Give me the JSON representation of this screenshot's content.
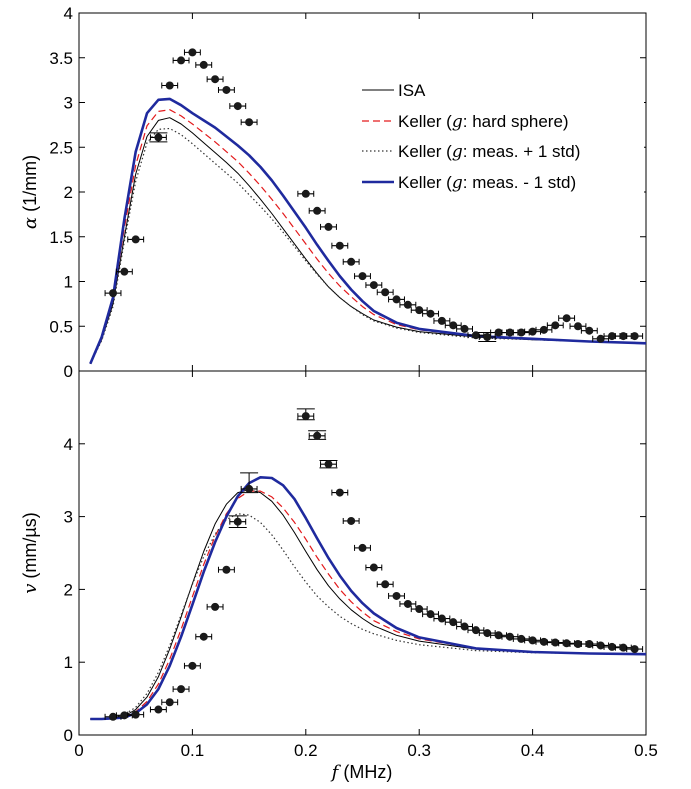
{
  "chart_data": [
    {
      "type": "line",
      "ylabel": {
        "symbol": "α",
        "unit": " (1/mm)"
      },
      "xlabel": "",
      "xlim": [
        0,
        0.5
      ],
      "ylim": [
        0,
        4
      ],
      "xticks": [],
      "yticks": [
        "0",
        "0.5",
        "1",
        "1.5",
        "2",
        "2.5",
        "3",
        "3.5",
        "4"
      ],
      "grid": false,
      "legend": {
        "placement": "top-right",
        "entries": [
          {
            "pre": "ISA",
            "sym": "",
            "post": "",
            "color": "#000000",
            "dash": "",
            "width": 1
          },
          {
            "pre": "Keller (",
            "sym": "g",
            "post": ": hard sphere)",
            "color": "#e31a1c",
            "dash": "7,4",
            "width": 1.2
          },
          {
            "pre": "Keller (",
            "sym": "g",
            "post": ": meas. + 1 std)",
            "color": "#333333",
            "dash": "1.5,2.5",
            "width": 1.2
          },
          {
            "pre": "Keller (",
            "sym": "g",
            "post": ": meas. - 1 std)",
            "color": "#1f2a9e",
            "dash": "",
            "width": 2.6
          }
        ]
      },
      "series": [
        {
          "legend_index": 0,
          "x": [
            0.01,
            0.02,
            0.03,
            0.04,
            0.05,
            0.06,
            0.07,
            0.08,
            0.09,
            0.1,
            0.11,
            0.12,
            0.13,
            0.14,
            0.15,
            0.16,
            0.17,
            0.18,
            0.19,
            0.2,
            0.21,
            0.22,
            0.23,
            0.24,
            0.25,
            0.26,
            0.28,
            0.3,
            0.35,
            0.4,
            0.45,
            0.5
          ],
          "y": [
            0.08,
            0.35,
            0.75,
            1.5,
            2.2,
            2.62,
            2.8,
            2.83,
            2.76,
            2.66,
            2.55,
            2.44,
            2.33,
            2.21,
            2.07,
            1.92,
            1.76,
            1.59,
            1.42,
            1.25,
            1.09,
            0.94,
            0.82,
            0.72,
            0.64,
            0.57,
            0.49,
            0.44,
            0.38,
            0.35,
            0.33,
            0.31
          ]
        },
        {
          "legend_index": 1,
          "x": [
            0.01,
            0.02,
            0.03,
            0.04,
            0.05,
            0.06,
            0.07,
            0.08,
            0.09,
            0.1,
            0.11,
            0.12,
            0.13,
            0.14,
            0.15,
            0.16,
            0.17,
            0.18,
            0.19,
            0.2,
            0.21,
            0.22,
            0.23,
            0.24,
            0.25,
            0.26,
            0.28,
            0.3,
            0.35,
            0.4,
            0.45,
            0.5
          ],
          "y": [
            0.08,
            0.36,
            0.8,
            1.6,
            2.3,
            2.74,
            2.9,
            2.92,
            2.85,
            2.76,
            2.66,
            2.56,
            2.45,
            2.34,
            2.21,
            2.07,
            1.92,
            1.76,
            1.59,
            1.42,
            1.25,
            1.09,
            0.95,
            0.83,
            0.72,
            0.63,
            0.52,
            0.46,
            0.39,
            0.36,
            0.33,
            0.31
          ]
        },
        {
          "legend_index": 2,
          "x": [
            0.01,
            0.02,
            0.03,
            0.04,
            0.05,
            0.06,
            0.07,
            0.08,
            0.09,
            0.1,
            0.11,
            0.12,
            0.13,
            0.14,
            0.15,
            0.16,
            0.17,
            0.18,
            0.19,
            0.2,
            0.21,
            0.22,
            0.23,
            0.24,
            0.25,
            0.26,
            0.28,
            0.3,
            0.35,
            0.4,
            0.45,
            0.5
          ],
          "y": [
            0.08,
            0.34,
            0.72,
            1.45,
            2.12,
            2.55,
            2.7,
            2.71,
            2.64,
            2.54,
            2.43,
            2.32,
            2.21,
            2.1,
            1.97,
            1.84,
            1.7,
            1.55,
            1.39,
            1.23,
            1.08,
            0.94,
            0.82,
            0.72,
            0.63,
            0.56,
            0.48,
            0.43,
            0.37,
            0.35,
            0.33,
            0.31
          ]
        },
        {
          "legend_index": 3,
          "x": [
            0.01,
            0.02,
            0.03,
            0.04,
            0.05,
            0.06,
            0.07,
            0.08,
            0.09,
            0.1,
            0.11,
            0.12,
            0.13,
            0.14,
            0.15,
            0.16,
            0.17,
            0.18,
            0.19,
            0.2,
            0.21,
            0.22,
            0.23,
            0.24,
            0.25,
            0.26,
            0.28,
            0.3,
            0.35,
            0.4,
            0.45,
            0.5
          ],
          "y": [
            0.08,
            0.38,
            0.82,
            1.7,
            2.45,
            2.88,
            3.03,
            3.04,
            2.97,
            2.88,
            2.8,
            2.72,
            2.62,
            2.52,
            2.41,
            2.28,
            2.13,
            1.96,
            1.78,
            1.6,
            1.41,
            1.23,
            1.06,
            0.91,
            0.78,
            0.67,
            0.54,
            0.47,
            0.39,
            0.36,
            0.33,
            0.31
          ]
        }
      ],
      "measured": {
        "x": [
          0.03,
          0.04,
          0.05,
          0.07,
          0.08,
          0.09,
          0.1,
          0.11,
          0.12,
          0.13,
          0.14,
          0.15,
          0.2,
          0.21,
          0.22,
          0.23,
          0.24,
          0.25,
          0.26,
          0.27,
          0.28,
          0.29,
          0.3,
          0.31,
          0.32,
          0.33,
          0.34,
          0.35,
          0.36,
          0.37,
          0.38,
          0.39,
          0.4,
          0.41,
          0.42,
          0.43,
          0.44,
          0.45,
          0.46,
          0.47,
          0.48,
          0.49
        ],
        "y": [
          0.87,
          1.11,
          1.47,
          2.61,
          3.19,
          3.47,
          3.56,
          3.42,
          3.26,
          3.14,
          2.96,
          2.78,
          1.98,
          1.79,
          1.61,
          1.4,
          1.22,
          1.06,
          0.96,
          0.88,
          0.8,
          0.74,
          0.68,
          0.64,
          0.56,
          0.51,
          0.47,
          0.4,
          0.38,
          0.43,
          0.43,
          0.43,
          0.44,
          0.46,
          0.51,
          0.59,
          0.5,
          0.45,
          0.36,
          0.39,
          0.39,
          0.39
        ],
        "xerr": 0.007,
        "yerr_hi": [
          0,
          0,
          0,
          0.05,
          0,
          0,
          0,
          0,
          0,
          0,
          0,
          0,
          0,
          0,
          0,
          0,
          0,
          0,
          0,
          0,
          0,
          0,
          0,
          0,
          0,
          0,
          0,
          0,
          0.05,
          0,
          0,
          0,
          0,
          0,
          0,
          0,
          0,
          0,
          0,
          0,
          0,
          0
        ],
        "yerr_lo": [
          0,
          0,
          0,
          0.05,
          0,
          0,
          0,
          0,
          0,
          0,
          0,
          0,
          0,
          0,
          0,
          0,
          0,
          0,
          0,
          0,
          0,
          0,
          0,
          0,
          0,
          0,
          0,
          0,
          0.05,
          0,
          0,
          0,
          0,
          0,
          0,
          0,
          0,
          0,
          0,
          0,
          0,
          0
        ]
      }
    },
    {
      "type": "line",
      "ylabel": {
        "symbol": "v",
        "unit": " (mm/µs)"
      },
      "xlabel": {
        "symbol": "f",
        "unit": " (MHz)"
      },
      "xlim": [
        0,
        0.5
      ],
      "ylim": [
        0,
        5
      ],
      "xticks": [
        "0",
        "0.1",
        "0.2",
        "0.3",
        "0.4",
        "0.5"
      ],
      "yticks": [
        "0",
        "1",
        "2",
        "3",
        "4"
      ],
      "grid": false,
      "series": [
        {
          "legend_index": 0,
          "x": [
            0.01,
            0.02,
            0.03,
            0.04,
            0.05,
            0.06,
            0.07,
            0.08,
            0.09,
            0.1,
            0.11,
            0.12,
            0.13,
            0.14,
            0.15,
            0.16,
            0.17,
            0.18,
            0.19,
            0.2,
            0.21,
            0.22,
            0.23,
            0.24,
            0.25,
            0.26,
            0.28,
            0.3,
            0.35,
            0.4,
            0.45,
            0.5
          ],
          "y": [
            0.22,
            0.22,
            0.23,
            0.26,
            0.35,
            0.52,
            0.8,
            1.18,
            1.62,
            2.08,
            2.52,
            2.9,
            3.17,
            3.33,
            3.37,
            3.33,
            3.21,
            3.02,
            2.78,
            2.52,
            2.27,
            2.05,
            1.87,
            1.72,
            1.6,
            1.5,
            1.37,
            1.29,
            1.18,
            1.14,
            1.12,
            1.11
          ]
        },
        {
          "legend_index": 1,
          "x": [
            0.01,
            0.02,
            0.03,
            0.04,
            0.05,
            0.06,
            0.07,
            0.08,
            0.09,
            0.1,
            0.11,
            0.12,
            0.13,
            0.14,
            0.15,
            0.16,
            0.17,
            0.18,
            0.19,
            0.2,
            0.21,
            0.22,
            0.23,
            0.24,
            0.25,
            0.26,
            0.28,
            0.3,
            0.35,
            0.4,
            0.45,
            0.5
          ],
          "y": [
            0.22,
            0.22,
            0.23,
            0.25,
            0.32,
            0.46,
            0.7,
            1.04,
            1.45,
            1.9,
            2.34,
            2.73,
            3.04,
            3.25,
            3.35,
            3.35,
            3.27,
            3.12,
            2.92,
            2.69,
            2.44,
            2.21,
            2.0,
            1.83,
            1.69,
            1.57,
            1.42,
            1.32,
            1.19,
            1.14,
            1.12,
            1.11
          ]
        },
        {
          "legend_index": 2,
          "x": [
            0.01,
            0.02,
            0.03,
            0.04,
            0.05,
            0.06,
            0.07,
            0.08,
            0.09,
            0.1,
            0.11,
            0.12,
            0.13,
            0.14,
            0.15,
            0.16,
            0.17,
            0.18,
            0.19,
            0.2,
            0.21,
            0.22,
            0.23,
            0.24,
            0.25,
            0.26,
            0.28,
            0.3,
            0.35,
            0.4,
            0.45,
            0.5
          ],
          "y": [
            0.22,
            0.22,
            0.24,
            0.28,
            0.38,
            0.57,
            0.86,
            1.23,
            1.65,
            2.07,
            2.45,
            2.76,
            2.96,
            3.04,
            3.02,
            2.92,
            2.75,
            2.54,
            2.31,
            2.1,
            1.91,
            1.76,
            1.63,
            1.53,
            1.45,
            1.39,
            1.3,
            1.24,
            1.16,
            1.13,
            1.12,
            1.11
          ]
        },
        {
          "legend_index": 3,
          "x": [
            0.01,
            0.02,
            0.03,
            0.04,
            0.05,
            0.06,
            0.07,
            0.08,
            0.09,
            0.1,
            0.11,
            0.12,
            0.13,
            0.14,
            0.15,
            0.16,
            0.17,
            0.18,
            0.19,
            0.2,
            0.21,
            0.22,
            0.23,
            0.24,
            0.25,
            0.26,
            0.28,
            0.3,
            0.35,
            0.4,
            0.45,
            0.5
          ],
          "y": [
            0.22,
            0.22,
            0.23,
            0.24,
            0.3,
            0.42,
            0.63,
            0.95,
            1.35,
            1.79,
            2.24,
            2.65,
            3.0,
            3.28,
            3.46,
            3.54,
            3.53,
            3.43,
            3.24,
            2.98,
            2.7,
            2.43,
            2.19,
            1.98,
            1.81,
            1.67,
            1.47,
            1.34,
            1.19,
            1.14,
            1.12,
            1.11
          ]
        }
      ],
      "measured": {
        "x": [
          0.03,
          0.04,
          0.05,
          0.07,
          0.08,
          0.09,
          0.1,
          0.11,
          0.12,
          0.13,
          0.14,
          0.15,
          0.2,
          0.21,
          0.22,
          0.23,
          0.24,
          0.25,
          0.26,
          0.27,
          0.28,
          0.29,
          0.3,
          0.31,
          0.32,
          0.33,
          0.34,
          0.35,
          0.36,
          0.37,
          0.38,
          0.39,
          0.4,
          0.41,
          0.42,
          0.43,
          0.44,
          0.45,
          0.46,
          0.47,
          0.48,
          0.49
        ],
        "y": [
          0.25,
          0.27,
          0.28,
          0.35,
          0.45,
          0.63,
          0.95,
          1.35,
          1.76,
          2.27,
          2.93,
          3.38,
          4.38,
          4.11,
          3.72,
          3.33,
          2.94,
          2.57,
          2.3,
          2.07,
          1.91,
          1.8,
          1.73,
          1.66,
          1.6,
          1.55,
          1.49,
          1.44,
          1.4,
          1.37,
          1.35,
          1.32,
          1.3,
          1.28,
          1.27,
          1.26,
          1.25,
          1.25,
          1.23,
          1.21,
          1.2,
          1.18
        ],
        "xerr": 0.007,
        "yerr_hi": [
          0,
          0,
          0,
          0,
          0,
          0,
          0,
          0,
          0,
          0,
          0.08,
          0.22,
          0.1,
          0.07,
          0.05,
          0,
          0,
          0,
          0,
          0,
          0,
          0,
          0,
          0,
          0,
          0,
          0,
          0,
          0,
          0,
          0,
          0,
          0,
          0,
          0,
          0,
          0,
          0,
          0,
          0,
          0,
          0
        ],
        "yerr_lo": [
          0,
          0,
          0,
          0,
          0,
          0,
          0,
          0,
          0,
          0,
          0.08,
          0.05,
          0.05,
          0.05,
          0.05,
          0,
          0,
          0,
          0,
          0,
          0,
          0,
          0,
          0,
          0,
          0,
          0,
          0,
          0,
          0,
          0,
          0,
          0,
          0,
          0,
          0,
          0,
          0,
          0,
          0,
          0,
          0
        ]
      }
    }
  ]
}
